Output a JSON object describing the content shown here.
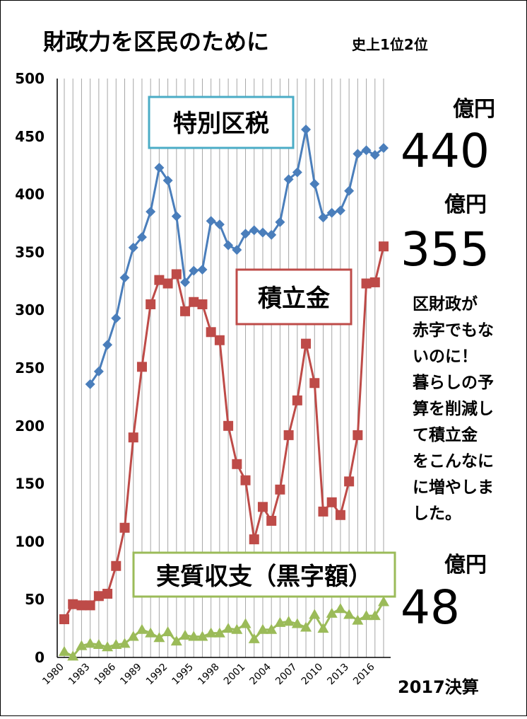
{
  "chart_data": {
    "type": "line",
    "title": "財政力を区民のために",
    "subtitle": "史上1位2位",
    "ylim": [
      0,
      500
    ],
    "yticks": [
      0,
      50,
      100,
      150,
      200,
      250,
      300,
      350,
      400,
      450,
      500
    ],
    "xlim": [
      1980,
      2017
    ],
    "xticks": [
      "1980",
      "1983",
      "1986",
      "1989",
      "1992",
      "1995",
      "1998",
      "2001",
      "2004",
      "2007",
      "2010",
      "2013",
      "2016"
    ],
    "grid": "vertical",
    "series": [
      {
        "name": "特別区税",
        "color": "#4a7ebb",
        "marker": "diamond",
        "x": [
          1983,
          1984,
          1985,
          1986,
          1987,
          1988,
          1989,
          1990,
          1991,
          1992,
          1993,
          1994,
          1995,
          1996,
          1997,
          1998,
          1999,
          2000,
          2001,
          2002,
          2003,
          2004,
          2005,
          2006,
          2007,
          2008,
          2009,
          2010,
          2011,
          2012,
          2013,
          2014,
          2015,
          2016,
          2017
        ],
        "values": [
          236,
          247,
          270,
          293,
          328,
          354,
          363,
          385,
          423,
          412,
          381,
          324,
          334,
          335,
          377,
          374,
          356,
          352,
          366,
          369,
          367,
          365,
          376,
          413,
          419,
          456,
          409,
          380,
          384,
          386,
          403,
          435,
          438,
          434,
          440
        ]
      },
      {
        "name": "積立金",
        "color": "#be4b48",
        "marker": "square",
        "x": [
          1980,
          1981,
          1982,
          1983,
          1984,
          1985,
          1986,
          1987,
          1988,
          1989,
          1990,
          1991,
          1992,
          1993,
          1994,
          1995,
          1996,
          1997,
          1998,
          1999,
          2000,
          2001,
          2002,
          2003,
          2004,
          2005,
          2006,
          2007,
          2008,
          2009,
          2010,
          2011,
          2012,
          2013,
          2014,
          2015,
          2016,
          2017
        ],
        "values": [
          33,
          46,
          45,
          45,
          53,
          55,
          79,
          112,
          190,
          251,
          305,
          326,
          323,
          331,
          299,
          307,
          305,
          281,
          274,
          200,
          167,
          153,
          102,
          130,
          118,
          145,
          192,
          222,
          271,
          237,
          126,
          134,
          123,
          152,
          192,
          323,
          324,
          355
        ]
      },
      {
        "name": "実質収支(黒字額)",
        "color": "#9bbb59",
        "marker": "triangle",
        "x": [
          1980,
          1981,
          1982,
          1983,
          1984,
          1985,
          1986,
          1987,
          1988,
          1989,
          1990,
          1991,
          1992,
          1993,
          1994,
          1995,
          1996,
          1997,
          1998,
          1999,
          2000,
          2001,
          2002,
          2003,
          2004,
          2005,
          2006,
          2007,
          2008,
          2009,
          2010,
          2011,
          2012,
          2013,
          2014,
          2015,
          2016,
          2017
        ],
        "values": [
          5,
          1,
          10,
          12,
          11,
          9,
          11,
          12,
          18,
          24,
          21,
          17,
          22,
          14,
          19,
          18,
          18,
          21,
          21,
          25,
          24,
          29,
          16,
          24,
          24,
          30,
          31,
          29,
          26,
          37,
          25,
          38,
          42,
          37,
          32,
          36,
          36,
          48
        ]
      }
    ],
    "series_labels": [
      "特別区税",
      "積立金",
      "実質収支（黒字額）"
    ],
    "annotations": {
      "unit": "億円",
      "value_special_tax": "440",
      "value_reserve": "355",
      "value_surplus": "48",
      "note_lines": [
        "区財政が",
        "赤字でもな",
        "いのに！",
        "暮らしの予",
        "算を削減し",
        "て積立金",
        "をこんなに",
        "に増やしま",
        "した。"
      ],
      "footer": "2017決算"
    }
  }
}
